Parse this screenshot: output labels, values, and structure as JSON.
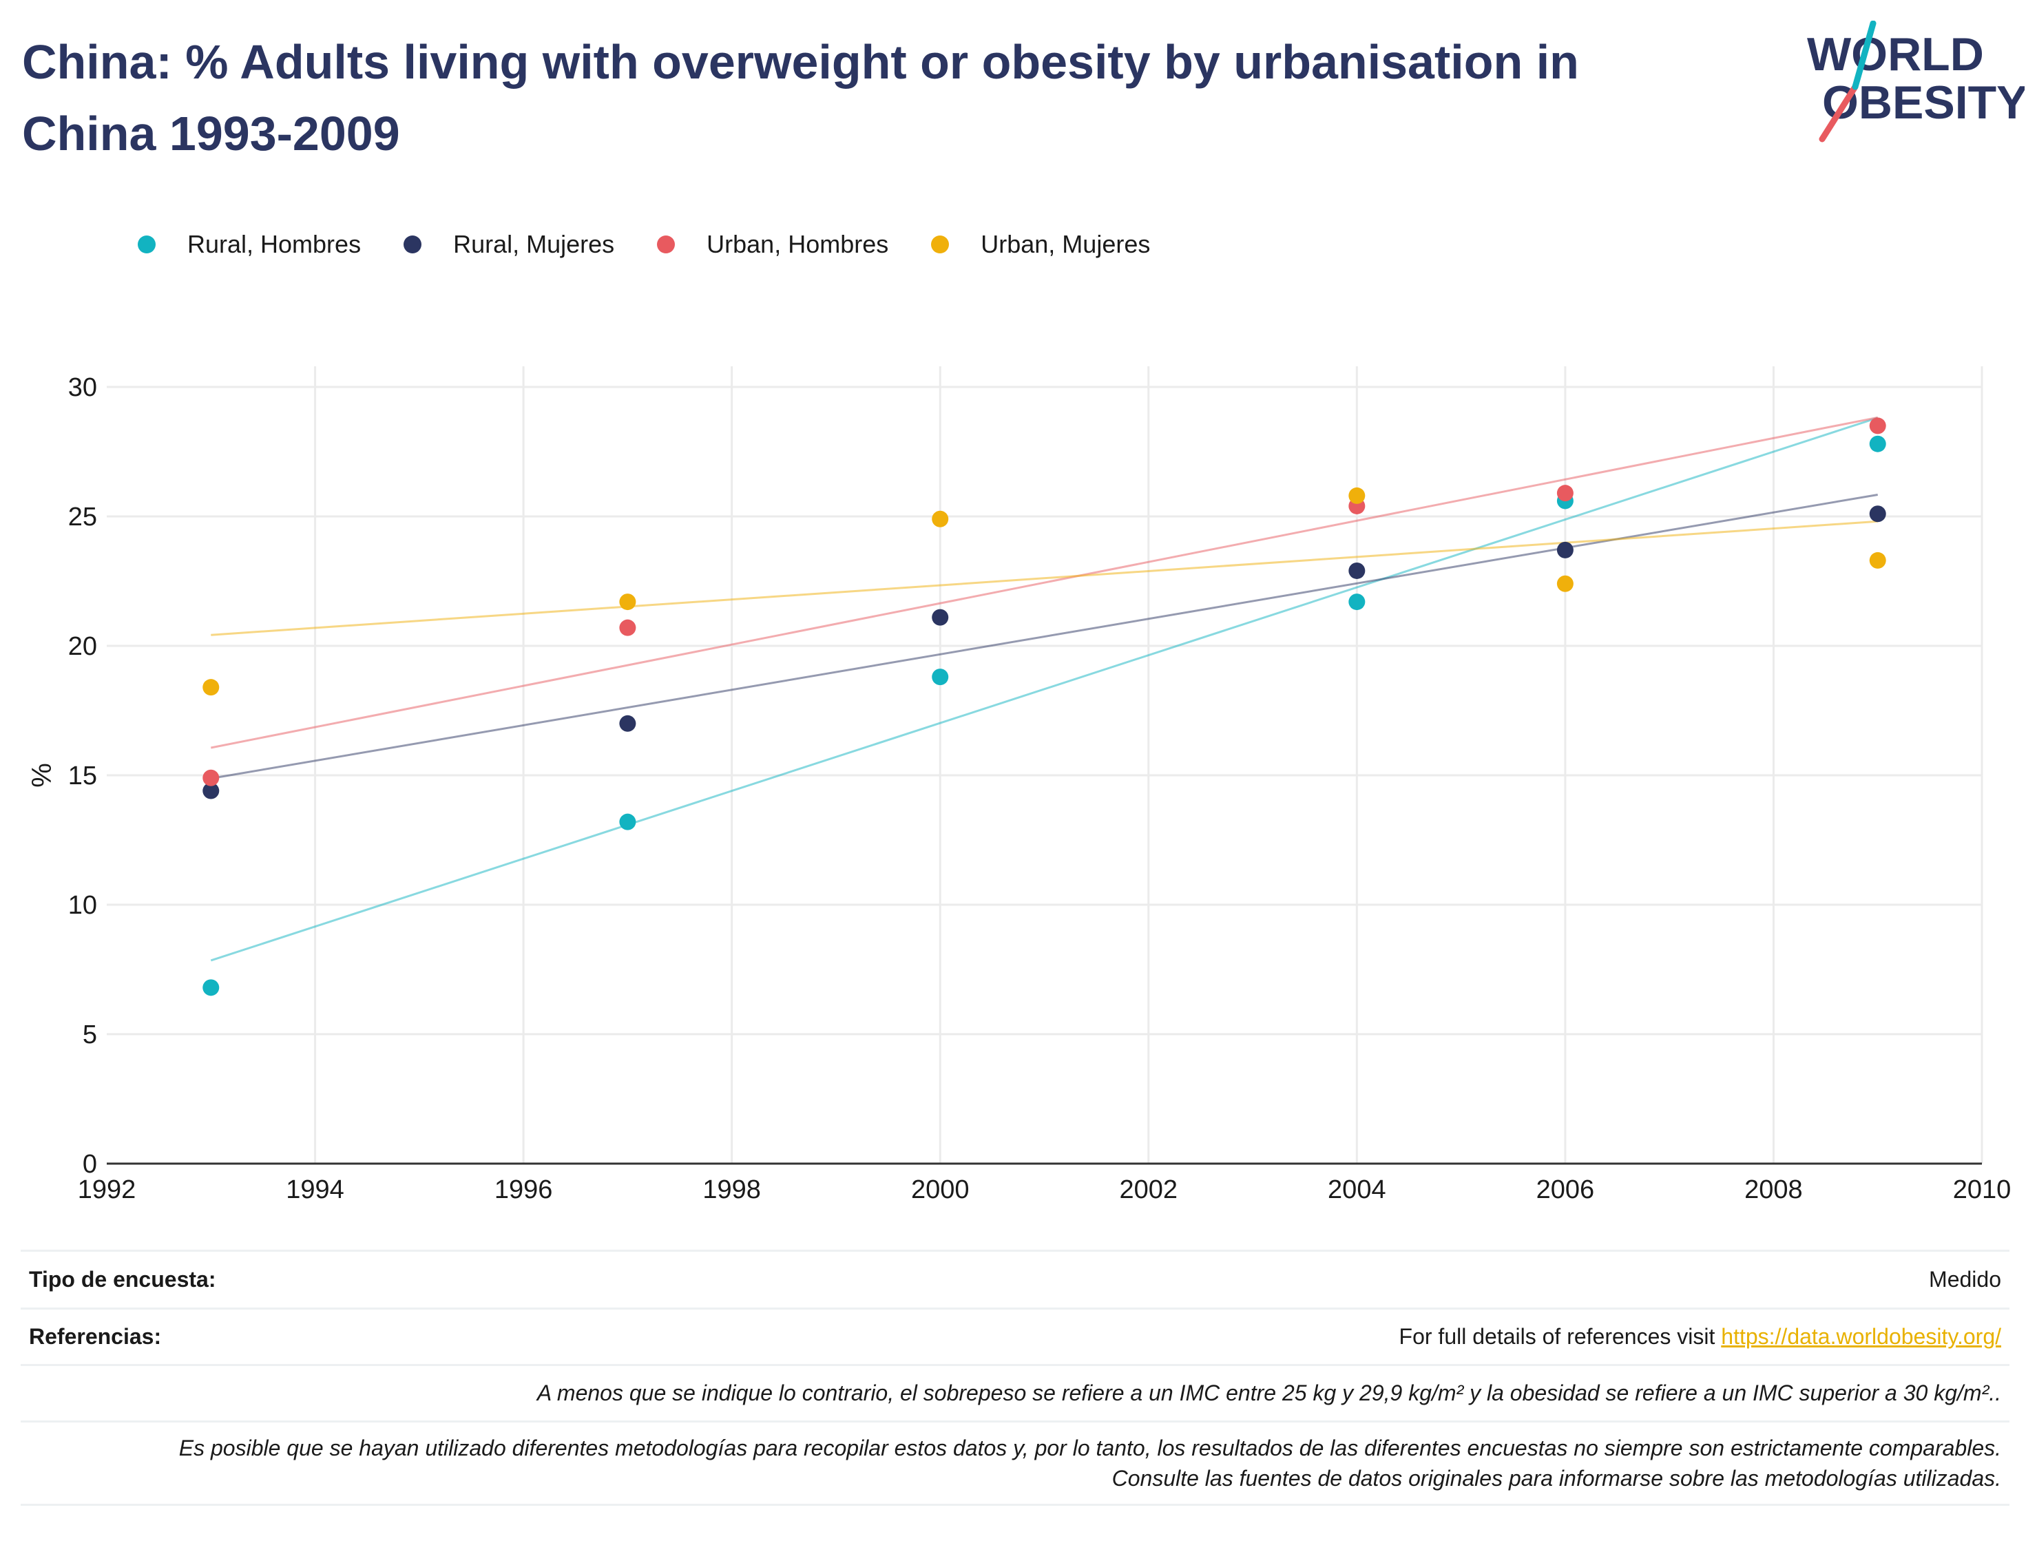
{
  "title": "China: % Adults living with overweight or obesity by urbanisation in China 1993-2009",
  "logo": {
    "line1": "WORLD",
    "line2": "OBESITY"
  },
  "colors": {
    "rural_h": "#12b3c1",
    "rural_m": "#2b3561",
    "urban_h": "#e85a5f",
    "urban_m": "#f0b00b",
    "title": "#2b3561"
  },
  "chart_data": {
    "type": "scatter",
    "xlim": [
      1992,
      2010
    ],
    "ylim": [
      0,
      30
    ],
    "xticks": [
      1992,
      1994,
      1996,
      1998,
      2000,
      2002,
      2004,
      2006,
      2008,
      2010
    ],
    "yticks": [
      0,
      5,
      10,
      15,
      20,
      25,
      30
    ],
    "xlabel": "",
    "ylabel": "%",
    "grid": true,
    "legend_position": "top-left",
    "trendlines": true,
    "series": [
      {
        "name": "Rural, Hombres",
        "color": "#12b3c1",
        "x": [
          1993,
          1997,
          2000,
          2004,
          2006,
          2009
        ],
        "y": [
          6.8,
          13.2,
          18.8,
          21.7,
          25.6,
          27.8
        ]
      },
      {
        "name": "Rural, Mujeres",
        "color": "#2b3561",
        "x": [
          1993,
          1997,
          2000,
          2004,
          2006,
          2009
        ],
        "y": [
          14.4,
          17.0,
          21.1,
          22.9,
          23.7,
          25.1
        ]
      },
      {
        "name": "Urban, Hombres",
        "color": "#e85a5f",
        "x": [
          1993,
          1997,
          2004,
          2006,
          2009
        ],
        "y": [
          14.9,
          20.7,
          25.4,
          25.9,
          28.5
        ]
      },
      {
        "name": "Urban, Mujeres",
        "color": "#f0b00b",
        "x": [
          1993,
          1997,
          2000,
          2004,
          2006,
          2009
        ],
        "y": [
          18.4,
          21.7,
          24.9,
          25.8,
          22.4,
          23.3
        ]
      }
    ]
  },
  "footer": {
    "survey_label": "Tipo de encuesta:",
    "survey_value": "Medido",
    "refs_label": "Referencias:",
    "refs_text": "For full details of references visit ",
    "refs_link": "https://data.worldobesity.org/",
    "note1": "A menos que se indique lo contrario, el sobrepeso se refiere a un IMC entre 25 kg y 29,9 kg/m² y la obesidad se refiere a un IMC superior a 30 kg/m²..",
    "note2": "Es posible que se hayan utilizado diferentes metodologías para recopilar estos datos y, por lo tanto, los resultados de las diferentes encuestas no siempre son estrictamente comparables. Consulte las fuentes de datos originales para informarse sobre las metodologías utilizadas."
  }
}
